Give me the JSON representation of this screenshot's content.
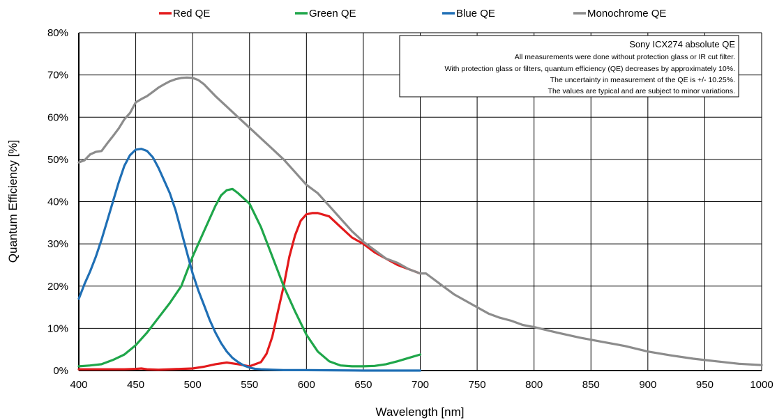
{
  "chart_data": {
    "type": "line",
    "xlabel": "Wavelength [nm]",
    "ylabel": "Quantum Efficiency [%]",
    "xlim": [
      400,
      1000
    ],
    "ylim": [
      0,
      80
    ],
    "x_ticks": [
      "400",
      "450",
      "500",
      "550",
      "600",
      "650",
      "700",
      "750",
      "800",
      "850",
      "900",
      "950",
      "1000"
    ],
    "y_ticks": [
      "0%",
      "10%",
      "20%",
      "30%",
      "40%",
      "50%",
      "60%",
      "70%",
      "80%"
    ],
    "grid": true,
    "legend_position": "top",
    "annotation": {
      "title": "Sony ICX274 absolute QE",
      "lines": [
        "All measurements were done without protection glass or IR cut filter.",
        "With protection glass or filters, quantum efficiency (QE) decreases by approximately 10%.",
        "The uncertainty in measurement of the QE is +/- 10.25%.",
        "The values are typical and are subject to minor variations."
      ]
    },
    "series": [
      {
        "name": "Red QE",
        "color": "#e31a1c",
        "x": [
          400,
          420,
          440,
          450,
          455,
          460,
          470,
          480,
          490,
          500,
          510,
          520,
          530,
          540,
          550,
          560,
          565,
          570,
          575,
          580,
          585,
          590,
          595,
          600,
          605,
          610,
          620,
          630,
          640,
          650,
          660,
          670,
          680,
          690,
          700
        ],
        "y": [
          0.3,
          0.3,
          0.3,
          0.4,
          0.5,
          0.3,
          0.2,
          0.3,
          0.4,
          0.5,
          0.9,
          1.5,
          1.9,
          1.5,
          1.0,
          2.0,
          4.0,
          8.0,
          14.0,
          20.0,
          27.0,
          32.0,
          35.5,
          37.0,
          37.3,
          37.3,
          36.5,
          34.0,
          31.5,
          30.0,
          28.0,
          26.5,
          25.0,
          24.0,
          23.0
        ]
      },
      {
        "name": "Green QE",
        "color": "#1fa64a",
        "x": [
          400,
          410,
          420,
          430,
          440,
          450,
          460,
          470,
          480,
          490,
          500,
          510,
          520,
          525,
          530,
          535,
          540,
          550,
          560,
          570,
          580,
          590,
          600,
          610,
          620,
          630,
          640,
          650,
          660,
          670,
          680,
          690,
          700
        ],
        "y": [
          1.0,
          1.2,
          1.5,
          2.5,
          3.8,
          6.0,
          9.0,
          12.5,
          16.0,
          20.0,
          27.0,
          33.0,
          39.0,
          41.5,
          42.7,
          43.0,
          42.0,
          39.5,
          34.0,
          27.0,
          20.0,
          14.0,
          8.5,
          4.5,
          2.2,
          1.2,
          1.0,
          1.0,
          1.1,
          1.5,
          2.2,
          3.0,
          3.8
        ]
      },
      {
        "name": "Blue QE",
        "color": "#1f6fb5",
        "x": [
          400,
          405,
          410,
          415,
          420,
          425,
          430,
          435,
          440,
          445,
          450,
          455,
          460,
          465,
          470,
          475,
          480,
          485,
          490,
          495,
          500,
          505,
          510,
          515,
          520,
          525,
          530,
          535,
          540,
          545,
          550,
          555,
          560,
          570,
          580,
          600,
          650,
          700
        ],
        "y": [
          17.0,
          20.5,
          23.5,
          27.0,
          31.0,
          35.5,
          40.0,
          44.5,
          48.5,
          51.0,
          52.3,
          52.5,
          52.0,
          50.5,
          48.0,
          45.0,
          42.0,
          38.0,
          33.0,
          28.0,
          23.0,
          19.0,
          15.5,
          12.0,
          9.0,
          6.5,
          4.5,
          3.0,
          2.0,
          1.2,
          0.7,
          0.4,
          0.3,
          0.2,
          0.1,
          0.1,
          0.0,
          0.0
        ]
      },
      {
        "name": "Monochrome QE",
        "color": "#8c8c8c",
        "x": [
          400,
          405,
          410,
          415,
          420,
          425,
          430,
          435,
          440,
          445,
          450,
          455,
          460,
          465,
          470,
          475,
          480,
          485,
          490,
          495,
          500,
          505,
          510,
          520,
          530,
          540,
          550,
          560,
          570,
          580,
          590,
          600,
          610,
          620,
          630,
          640,
          650,
          660,
          670,
          680,
          690,
          700,
          705,
          710,
          720,
          730,
          740,
          750,
          760,
          770,
          780,
          790,
          800,
          820,
          840,
          860,
          880,
          900,
          920,
          940,
          960,
          980,
          1000
        ],
        "y": [
          49.3,
          49.8,
          51.2,
          51.8,
          52.0,
          53.8,
          55.5,
          57.3,
          59.5,
          61.0,
          63.5,
          64.3,
          65.0,
          66.0,
          67.0,
          67.8,
          68.5,
          69.0,
          69.3,
          69.4,
          69.3,
          68.8,
          67.8,
          65.0,
          62.5,
          60.0,
          57.5,
          55.0,
          52.5,
          50.0,
          47.0,
          44.0,
          42.0,
          39.0,
          36.0,
          33.0,
          30.5,
          28.5,
          26.5,
          25.5,
          24.0,
          23.0,
          23.0,
          22.0,
          20.0,
          18.0,
          16.5,
          15.0,
          13.5,
          12.5,
          11.8,
          10.8,
          10.3,
          9.0,
          7.8,
          6.8,
          5.8,
          4.5,
          3.6,
          2.8,
          2.2,
          1.6,
          1.3
        ]
      }
    ]
  }
}
